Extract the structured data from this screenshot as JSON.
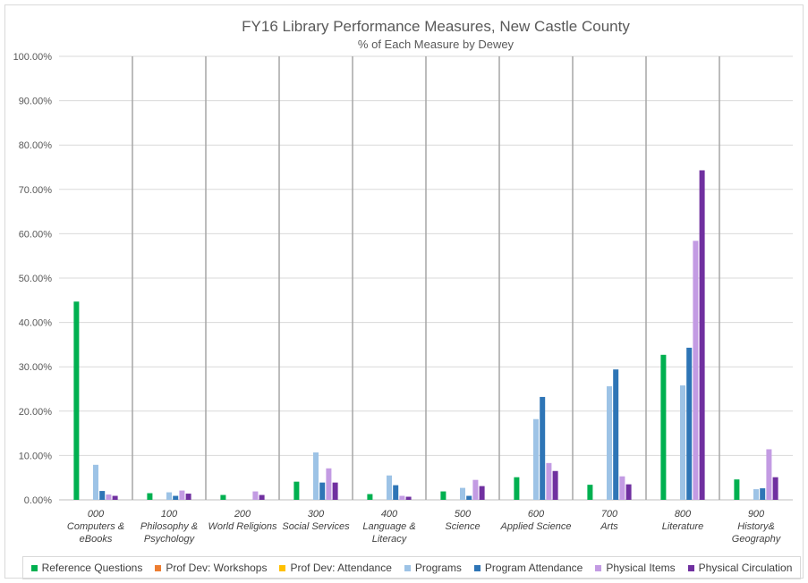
{
  "chart_data": {
    "type": "bar",
    "title": "FY16 Library Performance Measures, New Castle County",
    "subtitle": "% of Each Measure by Dewey",
    "ylim": [
      0,
      100
    ],
    "yticks": [
      "0.00%",
      "10.00%",
      "20.00%",
      "30.00%",
      "40.00%",
      "50.00%",
      "60.00%",
      "70.00%",
      "80.00%",
      "90.00%",
      "100.00%"
    ],
    "categories": [
      [
        "000",
        "Computers &",
        "eBooks"
      ],
      [
        "100",
        "Philosophy &",
        "Psychology"
      ],
      [
        "200",
        "World Religions"
      ],
      [
        "300",
        "Social Services"
      ],
      [
        "400",
        "Language &",
        "Literacy"
      ],
      [
        "500",
        "Science"
      ],
      [
        "600",
        "Applied Science"
      ],
      [
        "700",
        "Arts"
      ],
      [
        "800",
        "Literature"
      ],
      [
        "900",
        "History&",
        "Geography"
      ]
    ],
    "series": [
      {
        "name": "Reference Questions",
        "color": "#00b050",
        "values": [
          44.7,
          1.5,
          1.1,
          4.1,
          1.3,
          1.9,
          5.1,
          3.4,
          32.7,
          4.6
        ]
      },
      {
        "name": "Prof Dev: Workshops",
        "color": "#ed7d31",
        "values": [
          0,
          0,
          0,
          0,
          0,
          0,
          0,
          0,
          0,
          0
        ]
      },
      {
        "name": "Prof Dev: Attendance",
        "color": "#ffc000",
        "values": [
          0,
          0,
          0,
          0,
          0,
          0,
          0,
          0,
          0,
          0
        ]
      },
      {
        "name": "Programs",
        "color": "#9dc3e6",
        "values": [
          7.9,
          1.7,
          0,
          10.7,
          5.5,
          2.7,
          18.2,
          25.6,
          25.8,
          2.4
        ]
      },
      {
        "name": "Program Attendance",
        "color": "#2e75b6",
        "values": [
          2.0,
          0.9,
          0,
          3.9,
          3.3,
          0.9,
          23.2,
          29.4,
          34.3,
          2.6
        ]
      },
      {
        "name": "Physical Items",
        "color": "#c39be3",
        "values": [
          1.2,
          2.1,
          1.9,
          7.1,
          0.9,
          4.5,
          8.3,
          5.3,
          58.4,
          11.4
        ]
      },
      {
        "name": "Physical Circulation",
        "color": "#7030a0",
        "values": [
          0.9,
          1.4,
          1.1,
          3.9,
          0.7,
          3.1,
          6.5,
          3.5,
          74.3,
          5.1
        ]
      }
    ],
    "grid": true,
    "legend_position": "bottom"
  }
}
